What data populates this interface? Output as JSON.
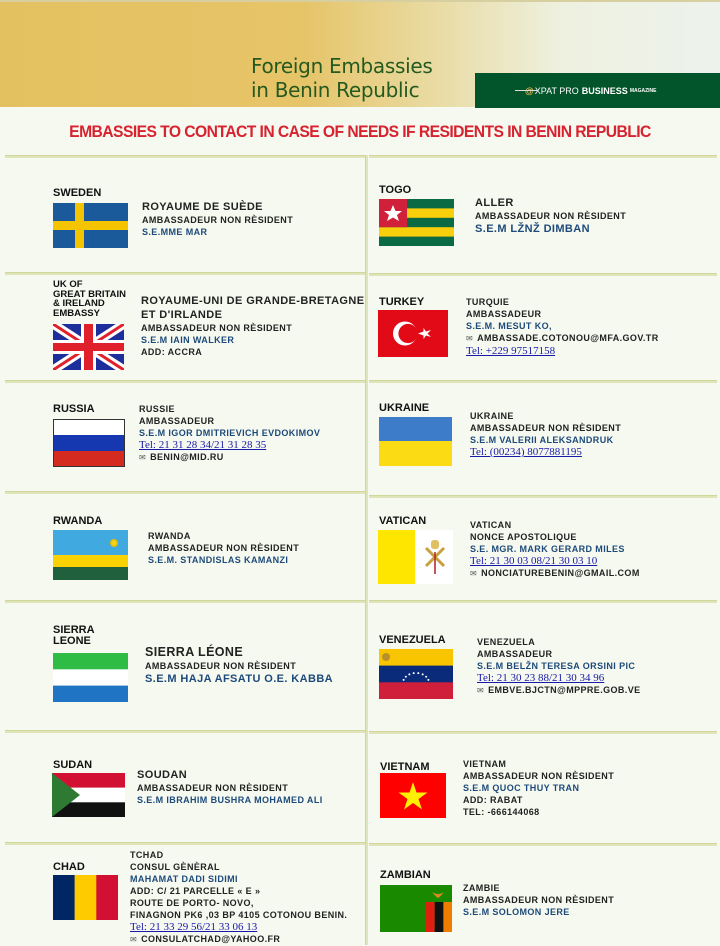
{
  "header": {
    "title_line1": "Foreign Embassies",
    "title_line2": "in Benin Republic",
    "brand": {
      "at": "@",
      "xpat": "XPAT PRO",
      "business": "BUSINESS",
      "magazine": "MAGAZINE"
    }
  },
  "subtitle": "EMBASSIES TO CONTACT IN CASE OF NEEDS IF RESIDENTS IN BENIN REPUBLIC",
  "colors": {
    "title": "#245a1f",
    "brand_bg": "#02542b",
    "subtitle": "#d7232f",
    "name": "#1d4a7a",
    "link": "#1a1aa8"
  },
  "embassies": [
    {
      "country": "SWEDEN",
      "flag": "sweden",
      "lines": [
        {
          "t": "ROYAUME DE SUÈDE",
          "k": "lg"
        },
        {
          "t": "AMBASSADEUR NON RÈSIDENT"
        },
        {
          "t": "S.E.MME MAR",
          "k": "name"
        }
      ]
    },
    {
      "country": "TOGO",
      "flag": "togo",
      "lines": [
        {
          "t": "ALLER",
          "k": "lg"
        },
        {
          "t": "AMBASSADEUR NON RÈSIDENT"
        },
        {
          "t": "S.E.M LŽNŽ DIMBAN",
          "k": "name lg"
        }
      ]
    },
    {
      "country": "UK OF\nGREAT BRITAIN\n& IRELAND\nEMBASSY",
      "flag": "uk",
      "lines": [
        {
          "t": "ROYAUME-UNI DE GRANDE-BRETAGNE",
          "k": "lg"
        },
        {
          "t": "ET D'IRLANDE",
          "k": "lg"
        },
        {
          "t": "AMBASSADEUR NON RÈSIDENT"
        },
        {
          "t": "S.E.M IAIN WALKER",
          "k": "name"
        },
        {
          "t": "ADD: ACCRA"
        }
      ]
    },
    {
      "country": "TURKEY",
      "flag": "turkey",
      "lines": [
        {
          "t": "TURQUIE"
        },
        {
          "t": "AMBASSADEUR"
        },
        {
          "t": "S.E.M. MESUT KO,",
          "k": "name"
        },
        {
          "t": "AMBASSADE.COTONOU@MFA.GOV.TR",
          "k": "mail"
        },
        {
          "t": "Tel: +229 97517158",
          "k": "tel"
        }
      ]
    },
    {
      "country": "RUSSIA",
      "flag": "russia",
      "lines": [
        {
          "t": "RUSSIE"
        },
        {
          "t": "AMBASSADEUR"
        },
        {
          "t": "S.E.M IGOR DMITRIEVICH EVDOKIMOV",
          "k": "name"
        },
        {
          "t": "Tel: 21 31 28 34/21 31 28 35",
          "k": "tel"
        },
        {
          "t": "BENIN@MID.RU",
          "k": "mail"
        }
      ]
    },
    {
      "country": "UKRAINE",
      "flag": "ukraine",
      "lines": [
        {
          "t": "UKRAINE"
        },
        {
          "t": "AMBASSADEUR NON RÈSIDENT"
        },
        {
          "t": "S.E.M VALERII ALEKSANDRUK",
          "k": "name"
        },
        {
          "t": "Tel: (00234) 8077881195",
          "k": "tel"
        }
      ]
    },
    {
      "country": "RWANDA",
      "flag": "rwanda",
      "lines": [
        {
          "t": "RWANDA"
        },
        {
          "t": "AMBASSADEUR NON RÈSIDENT"
        },
        {
          "t": "S.E.M. STANDISLAS KAMANZI",
          "k": "name"
        }
      ]
    },
    {
      "country": "VATICAN",
      "flag": "vatican",
      "lines": [
        {
          "t": "VATICAN"
        },
        {
          "t": "NONCE APOSTOLIQUE"
        },
        {
          "t": "S.E. MGR. MARK GERARD MILES",
          "k": "name"
        },
        {
          "t": "Tel: 21 30 03 08/21 30 03 10",
          "k": "tel"
        },
        {
          "t": "NONCIATUREBENIN@GMAIL.COM",
          "k": "mail"
        }
      ]
    },
    {
      "country": "SIERRA\nLEONE",
      "flag": "sierra",
      "lines": [
        {
          "t": "SIERRA LÉONE",
          "k": "xl"
        },
        {
          "t": "AMBASSADEUR NON RÈSIDENT"
        },
        {
          "t": "S.E.M HAJA AFSATU O.E. KABBA",
          "k": "name lg"
        }
      ]
    },
    {
      "country": "VENEZUELA",
      "flag": "venezuela",
      "lines": [
        {
          "t": "VENEZUELA"
        },
        {
          "t": "AMBASSADEUR"
        },
        {
          "t": "S.E.M BELŽN TERESA ORSINI PIC",
          "k": "name"
        },
        {
          "t": "Tel: 21 30 23 88/21 30 34 96",
          "k": "tel"
        },
        {
          "t": "EMBVE.BJCTN@MPPRE.GOB.VE",
          "k": "mail"
        }
      ]
    },
    {
      "country": "SUDAN",
      "flag": "sudan",
      "lines": [
        {
          "t": "SOUDAN",
          "k": "lg"
        },
        {
          "t": "AMBASSADEUR NON RÈSIDENT"
        },
        {
          "t": "S.E.M IBRAHIM BUSHRA MOHAMED ALI",
          "k": "name"
        }
      ]
    },
    {
      "country": "VIETNAM",
      "flag": "vietnam",
      "lines": [
        {
          "t": "VIETNAM"
        },
        {
          "t": "AMBASSADEUR NON RÈSIDENT"
        },
        {
          "t": "S.E.M QUOC THUY TRAN",
          "k": "name"
        },
        {
          "t": "ADD: RABAT"
        },
        {
          "t": "TEL: -666144068"
        }
      ]
    },
    {
      "country": "CHAD",
      "flag": "chad",
      "lines": [
        {
          "t": "TCHAD"
        },
        {
          "t": "CONSUL GÈNÈRAL"
        },
        {
          "t": "MAHAMAT DADI SIDIMI",
          "k": "name"
        },
        {
          "t": "ADD: C/ 21 PARCELLE « E »"
        },
        {
          "t": "ROUTE DE PORTO- NOVO,"
        },
        {
          "t": "FINAGNON PK6 ,03 BP 4105 COTONOU BENIN."
        },
        {
          "t": "Tel: 21 33 29 56/21 33 06 13",
          "k": "tel"
        },
        {
          "t": "CONSULATCHAD@YAHOO.FR",
          "k": "mail"
        }
      ]
    },
    {
      "country": "ZAMBIAN",
      "flag": "zambia",
      "lines": [
        {
          "t": "ZAMBIE"
        },
        {
          "t": "AMBASSADEUR NON RÈSIDENT"
        },
        {
          "t": "S.E.M SOLOMON JERE",
          "k": "name"
        }
      ]
    }
  ]
}
